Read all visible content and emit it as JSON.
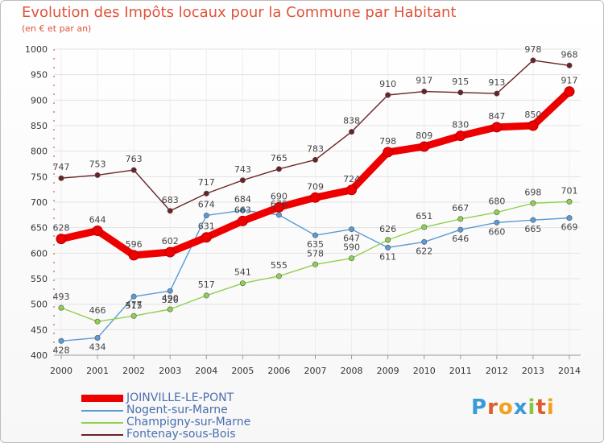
{
  "chart_data": {
    "type": "line",
    "title": "Evolution des Impôts locaux pour la Commune par Habitant",
    "subtitle": "(en € et par an)",
    "x": [
      "2000",
      "2001",
      "2002",
      "2003",
      "2004",
      "2005",
      "2006",
      "2007",
      "2008",
      "2009",
      "2010",
      "2011",
      "2012",
      "2013",
      "2014"
    ],
    "ylim": [
      400,
      1000
    ],
    "yticks": [
      "400",
      "450",
      "500",
      "550",
      "600",
      "650",
      "700",
      "750",
      "800",
      "850",
      "900",
      "950",
      "1000"
    ],
    "series": [
      {
        "name": "JOINVILLE-LE-PONT",
        "color": "#ee0000",
        "values": [
          628,
          644,
          596,
          602,
          631,
          663,
          690,
          709,
          724,
          798,
          809,
          830,
          847,
          850,
          917
        ],
        "labels": [
          "628",
          "644",
          "596",
          "602",
          "631",
          "663",
          "690",
          "709",
          "724",
          "798",
          "809",
          "830",
          "847",
          "850",
          "917"
        ]
      },
      {
        "name": "Nogent-sur-Marne",
        "color": "#5b9bd5",
        "values": [
          428,
          434,
          515,
          526,
          674,
          684,
          675,
          635,
          647,
          611,
          622,
          646,
          660,
          665,
          669
        ],
        "labels": [
          "428",
          "434",
          "515",
          "526",
          "674",
          "684",
          "675",
          "635",
          "647",
          "611",
          "622",
          "646",
          "660",
          "665",
          "669"
        ]
      },
      {
        "name": "Champigny-sur-Marne",
        "color": "#8fd14f",
        "values": [
          493,
          466,
          477,
          490,
          517,
          541,
          555,
          578,
          590,
          626,
          651,
          667,
          680,
          698,
          701
        ],
        "labels": [
          "493",
          "466",
          "477",
          "490",
          "517",
          "541",
          "555",
          "578",
          "590",
          "626",
          "651",
          "667",
          "680",
          "698",
          "701"
        ]
      },
      {
        "name": "Fontenay-sous-Bois",
        "color": "#6b2224",
        "values": [
          747,
          753,
          763,
          683,
          717,
          743,
          765,
          783,
          838,
          910,
          917,
          915,
          913,
          978,
          968
        ],
        "labels": [
          "747",
          "753",
          "763",
          "683",
          "717",
          "743",
          "765",
          "783",
          "838",
          "910",
          "917",
          "915",
          "913",
          "978",
          "968"
        ]
      }
    ]
  },
  "legend": {
    "items": [
      {
        "label": "JOINVILLE-LE-PONT",
        "color": "#ee0000"
      },
      {
        "label": "Nogent-sur-Marne",
        "color": "#5b9bd5"
      },
      {
        "label": "Champigny-sur-Marne",
        "color": "#8fd14f"
      },
      {
        "label": "Fontenay-sous-Bois",
        "color": "#6b2224"
      }
    ]
  },
  "logo": {
    "text": "Proxiti",
    "colors": [
      "#3a9ad9",
      "#e05a2a",
      "#f2a01e",
      "#3a9ad9",
      "#8bc43f",
      "#e05a2a",
      "#f2a01e"
    ]
  }
}
